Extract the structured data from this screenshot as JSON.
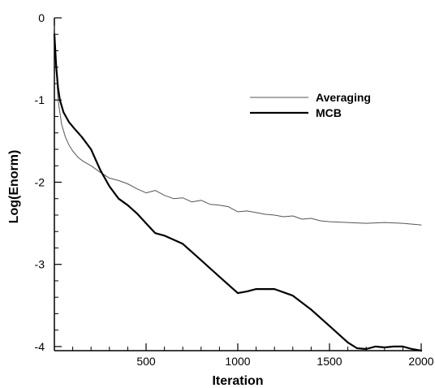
{
  "chart_data": {
    "type": "line",
    "title": "",
    "xlabel": "Iteration",
    "ylabel": "Log(Enorm)",
    "xlim": [
      0,
      2000
    ],
    "ylim": [
      -4.05,
      0
    ],
    "x_ticks": [
      500,
      1000,
      1500,
      2000
    ],
    "x_tick_labels": [
      "500",
      "1000",
      "1500",
      "2000"
    ],
    "y_ticks": [
      0,
      -1,
      -2,
      -3,
      -4
    ],
    "y_tick_labels": [
      "0",
      "-1",
      "-2",
      "-3",
      "-4"
    ],
    "grid": false,
    "legend_position": "top-right",
    "series": [
      {
        "name": "Averaging",
        "color": "#555555",
        "x": [
          0,
          10,
          20,
          40,
          60,
          80,
          100,
          130,
          160,
          200,
          250,
          300,
          350,
          400,
          450,
          500,
          550,
          600,
          650,
          700,
          750,
          800,
          850,
          900,
          950,
          1000,
          1050,
          1100,
          1150,
          1200,
          1250,
          1300,
          1350,
          1400,
          1450,
          1500,
          1600,
          1700,
          1800,
          1900,
          2000
        ],
        "y": [
          -0.1,
          -0.6,
          -1.0,
          -1.3,
          -1.45,
          -1.55,
          -1.62,
          -1.7,
          -1.75,
          -1.8,
          -1.88,
          -1.95,
          -1.98,
          -2.02,
          -2.08,
          -2.13,
          -2.1,
          -2.16,
          -2.2,
          -2.19,
          -2.24,
          -2.22,
          -2.27,
          -2.28,
          -2.3,
          -2.36,
          -2.35,
          -2.37,
          -2.39,
          -2.4,
          -2.42,
          -2.41,
          -2.45,
          -2.44,
          -2.47,
          -2.48,
          -2.49,
          -2.5,
          -2.49,
          -2.5,
          -2.52
        ]
      },
      {
        "name": "MCB",
        "color": "#000000",
        "x": [
          0,
          10,
          20,
          30,
          50,
          80,
          110,
          150,
          200,
          250,
          300,
          350,
          400,
          450,
          500,
          550,
          600,
          700,
          800,
          900,
          1000,
          1050,
          1100,
          1200,
          1300,
          1400,
          1500,
          1600,
          1650,
          1700,
          1750,
          1800,
          1850,
          1900,
          1950,
          2000
        ],
        "y": [
          -0.2,
          -0.6,
          -0.85,
          -1.0,
          -1.15,
          -1.27,
          -1.35,
          -1.45,
          -1.6,
          -1.85,
          -2.05,
          -2.2,
          -2.28,
          -2.38,
          -2.5,
          -2.62,
          -2.65,
          -2.75,
          -2.95,
          -3.15,
          -3.35,
          -3.33,
          -3.3,
          -3.3,
          -3.38,
          -3.55,
          -3.75,
          -3.95,
          -4.02,
          -4.03,
          -4.0,
          -4.01,
          -4.0,
          -4.0,
          -4.03,
          -4.05
        ]
      }
    ]
  }
}
